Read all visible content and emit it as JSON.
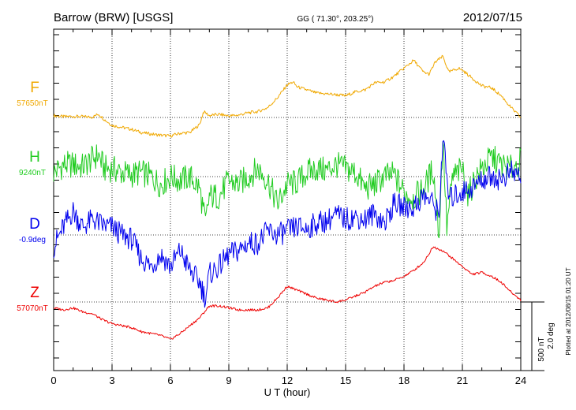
{
  "chart_data": {
    "type": "line",
    "title_left": "Barrow (BRW)  [USGS]",
    "title_center": "GG ( 71.30°, 203.25°)",
    "title_right": "2012/07/15",
    "xlabel": "U T (hour)",
    "xlim": [
      0,
      24
    ],
    "x_ticks": [
      "0",
      "3",
      "6",
      "9",
      "12",
      "15",
      "18",
      "21",
      "24"
    ],
    "scale_label_1": "500 nT",
    "scale_label_2": "2.0 deg",
    "footnote": "Plotted at 2012/08/15 01:20 UT",
    "grid": true,
    "series": [
      {
        "name": "F",
        "baseline": "57650nT",
        "color": "#f0a800",
        "x": [
          0,
          0.5,
          1,
          1.5,
          2,
          2.3,
          2.6,
          3,
          3.5,
          4,
          4.5,
          5,
          5.5,
          6,
          6.5,
          7,
          7.5,
          7.7,
          8,
          8.5,
          9,
          9.5,
          10,
          10.5,
          11,
          11.5,
          12,
          12.3,
          12.5,
          13,
          13.5,
          14,
          14.5,
          15,
          15.5,
          16,
          16.5,
          17,
          17.5,
          18,
          18.5,
          19,
          19.3,
          19.6,
          20,
          20.3,
          20.8,
          21,
          21.5,
          22,
          22.5,
          23,
          23.5,
          24
        ],
        "y": [
          0.05,
          0.02,
          0.03,
          0.02,
          0.01,
          0.09,
          -0.05,
          -0.2,
          -0.25,
          -0.3,
          -0.38,
          -0.42,
          -0.45,
          -0.47,
          -0.4,
          -0.38,
          -0.18,
          0.15,
          0.05,
          0.08,
          0.04,
          0.06,
          0.12,
          0.15,
          0.25,
          0.5,
          0.83,
          0.9,
          0.78,
          0.7,
          0.62,
          0.6,
          0.58,
          0.55,
          0.65,
          0.7,
          0.88,
          0.9,
          1.05,
          1.25,
          1.45,
          1.15,
          1.1,
          1.4,
          1.55,
          1.15,
          1.25,
          1.2,
          1.0,
          0.8,
          0.75,
          0.55,
          0.25,
          0.0
        ]
      },
      {
        "name": "H",
        "baseline": "9240nT",
        "color": "#22cc22",
        "x": [
          0,
          0.5,
          1,
          1.5,
          2,
          2.3,
          2.6,
          3,
          3.5,
          4,
          4.5,
          5,
          5.5,
          6,
          6.5,
          7,
          7.5,
          7.8,
          8,
          8.5,
          9,
          9.5,
          10,
          10.5,
          11,
          11.5,
          12,
          12.5,
          13,
          13.5,
          14,
          14.5,
          15,
          15.5,
          16,
          16.5,
          17,
          17.5,
          18,
          18.5,
          19,
          19.5,
          19.8,
          20,
          20.2,
          20.5,
          21,
          21.3,
          21.6,
          22,
          22.5,
          23,
          23.5,
          24
        ],
        "y": [
          0.1,
          0.3,
          0.3,
          0.25,
          0.45,
          0.55,
          0.2,
          0.2,
          0.1,
          0.05,
          0.1,
          0.0,
          -0.2,
          0.0,
          -0.1,
          0.0,
          -0.3,
          -1.2,
          -0.5,
          -0.5,
          -0.1,
          -0.2,
          0.0,
          0.2,
          -0.1,
          -0.7,
          -0.2,
          -0.15,
          0.1,
          0.2,
          0.15,
          0.3,
          0.2,
          0.1,
          -0.3,
          -0.2,
          0.0,
          0.05,
          -0.4,
          -0.55,
          -0.3,
          0.2,
          -1.5,
          1.0,
          -1.3,
          0.0,
          0.2,
          -0.5,
          -0.1,
          0.2,
          0.5,
          0.3,
          0.2,
          0.4
        ]
      },
      {
        "name": "D",
        "baseline": "-0.9deg",
        "color": "#0000ee",
        "x": [
          0,
          0.5,
          1,
          1.5,
          2,
          2.5,
          3,
          3.5,
          4,
          4.5,
          5,
          5.5,
          6,
          6.5,
          7,
          7.5,
          7.8,
          8,
          8.5,
          9,
          9.5,
          10,
          10.5,
          11,
          11.5,
          12,
          12.5,
          13,
          13.5,
          14,
          14.5,
          15,
          15.5,
          16,
          16.5,
          17,
          17.5,
          18,
          18.5,
          19,
          19.5,
          19.8,
          20,
          20.3,
          20.6,
          21,
          21.5,
          22,
          22.5,
          23,
          23.5,
          24
        ],
        "y": [
          -0.3,
          0.2,
          0.6,
          0.2,
          0.4,
          0.25,
          0.2,
          0.0,
          -0.1,
          -0.6,
          -0.8,
          -0.5,
          -0.8,
          -0.4,
          -0.9,
          -1.2,
          -1.6,
          -1.0,
          -0.8,
          -0.5,
          -0.4,
          -0.2,
          -0.2,
          0.1,
          0.0,
          0.1,
          0.2,
          0.15,
          0.3,
          0.35,
          0.5,
          0.4,
          0.45,
          0.4,
          0.55,
          0.3,
          0.8,
          0.7,
          0.7,
          1.0,
          0.8,
          0.5,
          2.5,
          0.9,
          1.0,
          1.1,
          1.2,
          1.4,
          1.5,
          1.4,
          1.6,
          1.5
        ]
      },
      {
        "name": "Z",
        "baseline": "57070nT",
        "color": "#ee0000",
        "x": [
          0,
          0.5,
          1,
          1.5,
          2,
          2.5,
          3,
          3.5,
          4,
          4.5,
          5,
          5.5,
          6,
          6.5,
          7,
          7.5,
          8,
          8.5,
          9,
          9.5,
          10,
          10.5,
          11,
          11.5,
          12,
          12.5,
          13,
          13.5,
          14,
          14.5,
          15,
          15.5,
          16,
          16.5,
          17,
          17.5,
          18,
          18.5,
          19,
          19.5,
          20,
          20.5,
          21,
          21.5,
          22,
          22.5,
          23,
          23.5,
          24
        ],
        "y": [
          -0.15,
          -0.2,
          -0.15,
          -0.25,
          -0.3,
          -0.45,
          -0.55,
          -0.6,
          -0.65,
          -0.75,
          -0.8,
          -0.85,
          -0.95,
          -0.8,
          -0.6,
          -0.4,
          -0.1,
          -0.1,
          -0.15,
          -0.2,
          -0.2,
          -0.2,
          -0.15,
          0.1,
          0.4,
          0.3,
          0.2,
          0.1,
          0.05,
          0.0,
          0.05,
          0.15,
          0.25,
          0.4,
          0.5,
          0.55,
          0.65,
          0.8,
          1.0,
          1.4,
          1.3,
          1.1,
          0.9,
          0.7,
          0.75,
          0.65,
          0.5,
          0.25,
          0.05
        ]
      }
    ]
  }
}
